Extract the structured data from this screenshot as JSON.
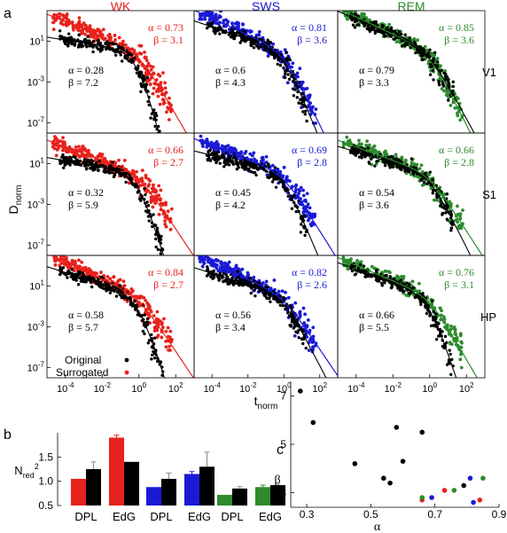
{
  "panel_labels": {
    "a": "a",
    "b": "b",
    "c": "c"
  },
  "colors": {
    "WK": "#e8221c",
    "SWS": "#1a1ad6",
    "REM": "#2e8b2e",
    "black": "#000000"
  },
  "chart_data": [
    {
      "type": "scatter",
      "panel": "a",
      "x_scale": "log",
      "y_scale": "log",
      "ylabel": "D",
      "ylabel_sub": "norm",
      "xlabel": "t",
      "xlabel_sub": "norm",
      "xlim": [
        1e-05,
        1000
      ],
      "ylim": [
        1e-08,
        10000
      ],
      "x_ticks": [
        {
          "value": 0.0001,
          "base": "10",
          "exp": "-4"
        },
        {
          "value": 0.01,
          "base": "10",
          "exp": "-2"
        },
        {
          "value": 1,
          "base": "10",
          "exp": "0"
        },
        {
          "value": 100,
          "base": "10",
          "exp": "2"
        }
      ],
      "y_ticks": [
        {
          "value": 10,
          "base": "10",
          "exp": "1"
        },
        {
          "value": 0.001,
          "base": "10",
          "exp": "-3"
        },
        {
          "value": 1e-07,
          "base": "10",
          "exp": "-7"
        }
      ],
      "columns": [
        "WK",
        "SWS",
        "REM"
      ],
      "rows": [
        "V1",
        "S1",
        "HP"
      ],
      "legend": {
        "original": "Original",
        "surrogated": "Surrogated"
      },
      "fits": [
        {
          "row": "V1",
          "col": "WK",
          "colored": {
            "alpha": "α = 0.73",
            "beta": "β = 3.1"
          },
          "black": {
            "alpha": "α = 0.28",
            "beta": "β = 7.2"
          }
        },
        {
          "row": "V1",
          "col": "SWS",
          "colored": {
            "alpha": "α = 0.81",
            "beta": "β = 3.6"
          },
          "black": {
            "alpha": "α = 0.6",
            "beta": "β = 4.3"
          }
        },
        {
          "row": "V1",
          "col": "REM",
          "colored": {
            "alpha": "α = 0.85",
            "beta": "β = 3.6"
          },
          "black": {
            "alpha": "α = 0.79",
            "beta": "β = 3.3"
          }
        },
        {
          "row": "S1",
          "col": "WK",
          "colored": {
            "alpha": "α = 0.66",
            "beta": "β = 2.7"
          },
          "black": {
            "alpha": "α = 0.32",
            "beta": "β = 5.9"
          }
        },
        {
          "row": "S1",
          "col": "SWS",
          "colored": {
            "alpha": "α = 0.69",
            "beta": "β = 2.8"
          },
          "black": {
            "alpha": "α = 0.45",
            "beta": "β = 4.2"
          }
        },
        {
          "row": "S1",
          "col": "REM",
          "colored": {
            "alpha": "α = 0.66",
            "beta": "β = 2.8"
          },
          "black": {
            "alpha": "α = 0.54",
            "beta": "β = 3.6"
          }
        },
        {
          "row": "HP",
          "col": "WK",
          "colored": {
            "alpha": "α = 0.84",
            "beta": "β = 2.7"
          },
          "black": {
            "alpha": "α = 0.58",
            "beta": "β = 5.7"
          }
        },
        {
          "row": "HP",
          "col": "SWS",
          "colored": {
            "alpha": "α = 0.82",
            "beta": "β = 2.6"
          },
          "black": {
            "alpha": "α = 0.56",
            "beta": "β = 3.4"
          }
        },
        {
          "row": "HP",
          "col": "REM",
          "colored": {
            "alpha": "α = 0.76",
            "beta": "β = 3.1"
          },
          "black": {
            "alpha": "α = 0.66",
            "beta": "β = 5.5"
          }
        }
      ]
    },
    {
      "type": "bar",
      "panel": "b",
      "ylabel": "N",
      "ylabel_sub": "red",
      "ylabel_sup": "2",
      "ylim": [
        0.5,
        2.0
      ],
      "y_ticks": [
        "0.5",
        "1.0",
        "1.5"
      ],
      "groups": [
        {
          "state": "WK",
          "bars": [
            {
              "label": "DPL",
              "colored": 1.05,
              "black": 1.25,
              "err_colored": 0.0,
              "err_black": 0.15
            },
            {
              "label": "EdG",
              "colored": 1.9,
              "black": 1.4,
              "err_colored": 0.05,
              "err_black": 0.0
            }
          ]
        },
        {
          "state": "SWS",
          "bars": [
            {
              "label": "DPL",
              "colored": 0.88,
              "black": 1.05,
              "err_colored": 0.0,
              "err_black": 0.12
            },
            {
              "label": "EdG",
              "colored": 1.15,
              "black": 1.3,
              "err_colored": 0.05,
              "err_black": 0.3
            }
          ]
        },
        {
          "state": "REM",
          "bars": [
            {
              "label": "DPL",
              "colored": 0.72,
              "black": 0.85,
              "err_colored": 0.0,
              "err_black": 0.04
            },
            {
              "label": "EdG",
              "colored": 0.88,
              "black": 0.92,
              "err_colored": 0.04,
              "err_black": 0.02
            }
          ]
        }
      ]
    },
    {
      "type": "scatter",
      "panel": "c",
      "xlabel": "α",
      "ylabel": "β",
      "xlim": [
        0.25,
        0.9
      ],
      "ylim": [
        2.4,
        7.6
      ],
      "x_ticks": [
        "0.3",
        "0.5",
        "0.7",
        "0.9"
      ],
      "y_ticks": [
        "3",
        "5",
        "7"
      ],
      "points": [
        {
          "x": 0.28,
          "y": 7.2,
          "group": "black"
        },
        {
          "x": 0.32,
          "y": 5.9,
          "group": "black"
        },
        {
          "x": 0.45,
          "y": 4.2,
          "group": "black"
        },
        {
          "x": 0.54,
          "y": 3.6,
          "group": "black"
        },
        {
          "x": 0.56,
          "y": 3.4,
          "group": "black"
        },
        {
          "x": 0.58,
          "y": 5.7,
          "group": "black"
        },
        {
          "x": 0.6,
          "y": 4.3,
          "group": "black"
        },
        {
          "x": 0.66,
          "y": 5.5,
          "group": "black"
        },
        {
          "x": 0.79,
          "y": 3.3,
          "group": "black"
        },
        {
          "x": 0.66,
          "y": 2.7,
          "group": "WK"
        },
        {
          "x": 0.73,
          "y": 3.1,
          "group": "WK"
        },
        {
          "x": 0.84,
          "y": 2.7,
          "group": "WK"
        },
        {
          "x": 0.69,
          "y": 2.8,
          "group": "SWS"
        },
        {
          "x": 0.81,
          "y": 3.6,
          "group": "SWS"
        },
        {
          "x": 0.82,
          "y": 2.6,
          "group": "SWS"
        },
        {
          "x": 0.66,
          "y": 2.8,
          "group": "REM"
        },
        {
          "x": 0.76,
          "y": 3.1,
          "group": "REM"
        },
        {
          "x": 0.85,
          "y": 3.6,
          "group": "REM"
        }
      ]
    }
  ]
}
